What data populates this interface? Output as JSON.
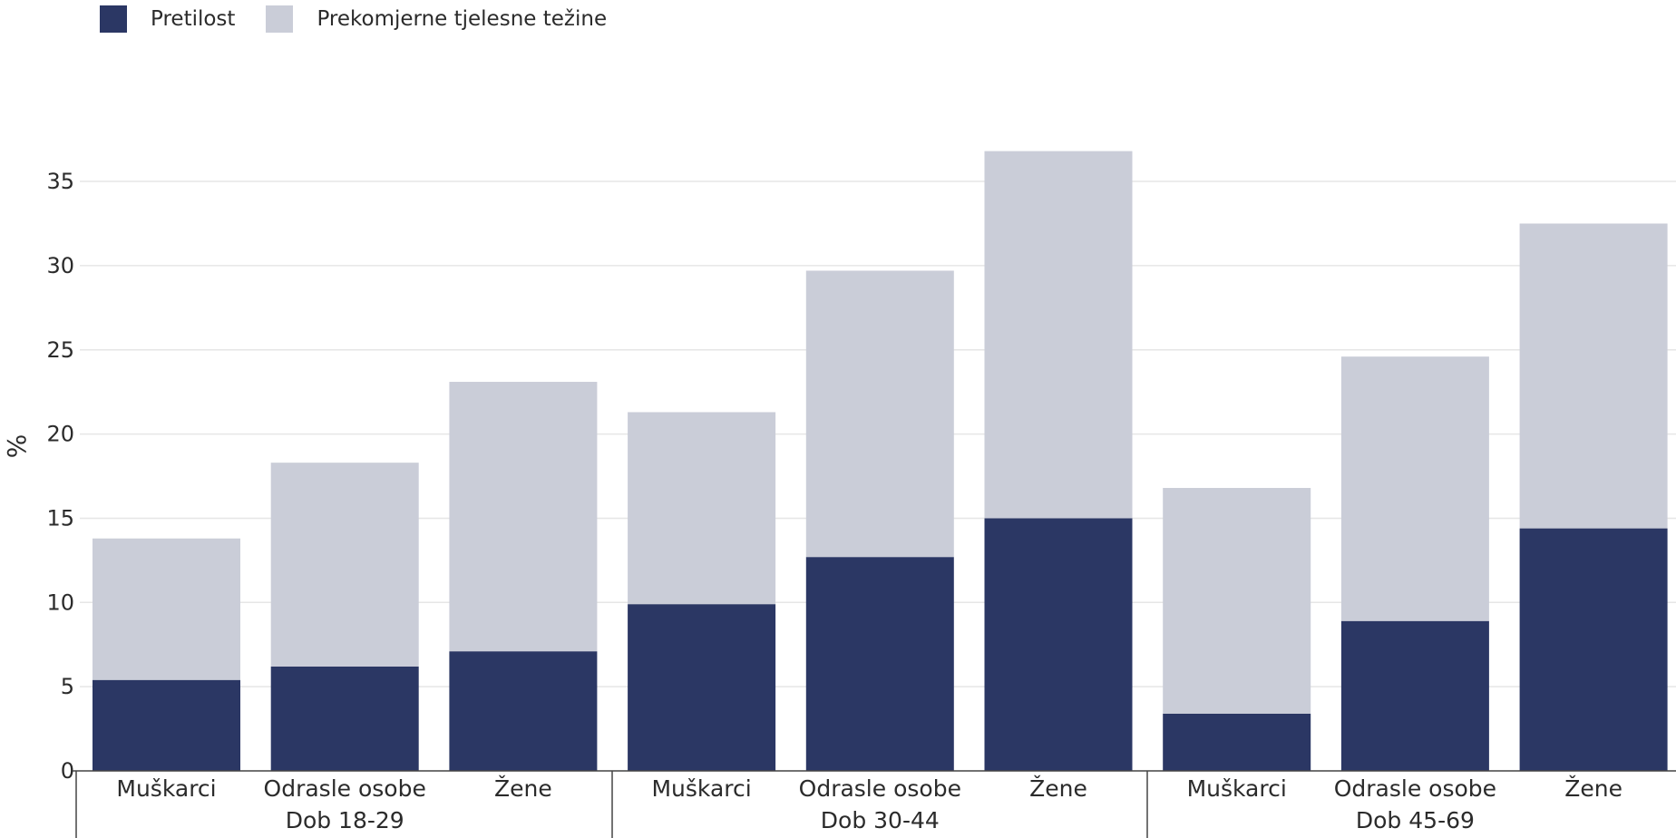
{
  "legend": {
    "items": [
      {
        "label": "Pretilost",
        "color": "#2b3764"
      },
      {
        "label": "Prekomjerne tjelesne težine",
        "color": "#cacdd8"
      }
    ]
  },
  "chart_data": {
    "type": "bar",
    "stacked": true,
    "ylabel": "%",
    "ylim": [
      0,
      37.5
    ],
    "yticks": [
      0,
      5,
      10,
      15,
      20,
      25,
      30,
      35
    ],
    "grid": true,
    "legend_position": "top-left",
    "groups": [
      {
        "label": "Dob 18-29",
        "categories": [
          "Muškarci",
          "Odrasle osobe",
          "Žene"
        ]
      },
      {
        "label": "Dob 30-44",
        "categories": [
          "Muškarci",
          "Odrasle osobe",
          "Žene"
        ]
      },
      {
        "label": "Dob 45-69",
        "categories": [
          "Muškarci",
          "Odrasle osobe",
          "Žene"
        ]
      }
    ],
    "series": [
      {
        "name": "Pretilost",
        "color": "#2b3764",
        "values": [
          5.4,
          6.2,
          7.1,
          9.9,
          12.7,
          15.0,
          3.4,
          8.9,
          14.4
        ]
      },
      {
        "name": "Prekomjerne tjelesne težine",
        "color": "#cacdd8",
        "values": [
          8.4,
          12.1,
          16.0,
          11.4,
          17.0,
          21.8,
          13.4,
          15.7,
          18.1
        ]
      }
    ]
  }
}
